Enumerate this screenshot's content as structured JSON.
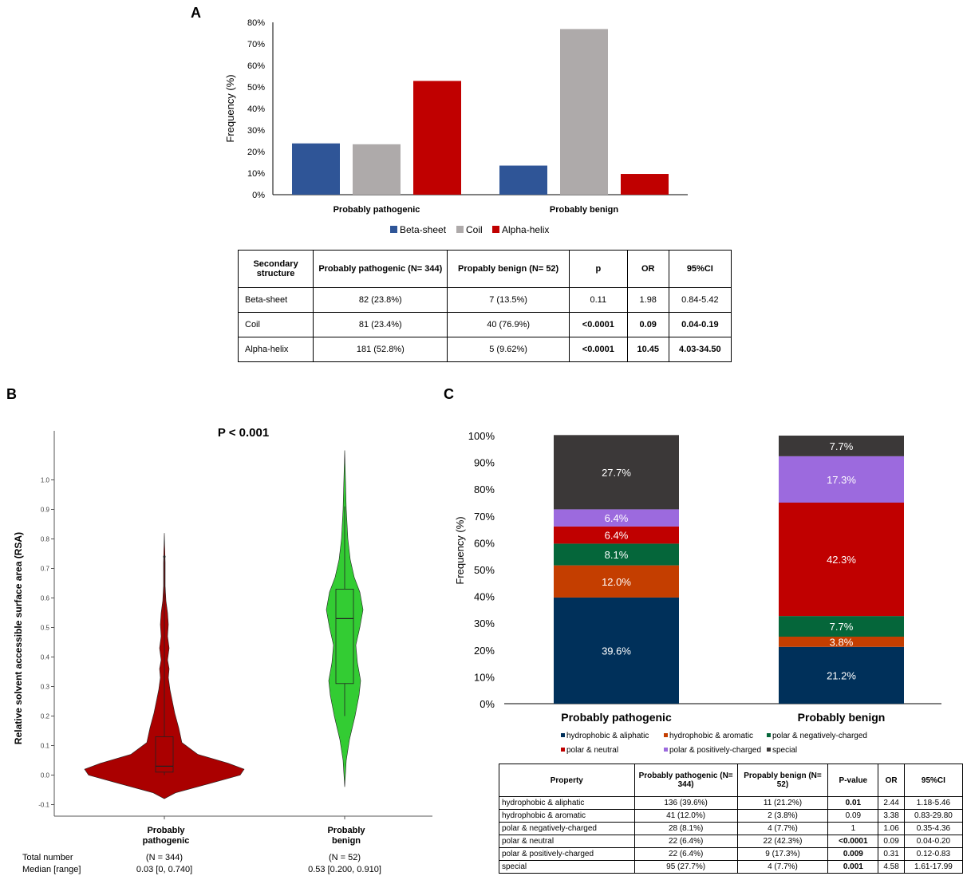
{
  "panels": [
    {
      "letter": "A"
    },
    {
      "letter": "B"
    },
    {
      "letter": "C"
    }
  ],
  "chart_data": [
    {
      "id": "A",
      "type": "bar",
      "ylabel": "Frequency (%)",
      "ylim": [
        0,
        80
      ],
      "yticks": [
        "0%",
        "10%",
        "20%",
        "30%",
        "40%",
        "50%",
        "60%",
        "70%",
        "80%"
      ],
      "categories": [
        "Probably pathogenic",
        "Probably benign"
      ],
      "series": [
        {
          "name": "Beta-sheet",
          "color": "#2f5597",
          "values": [
            23.8,
            13.5
          ]
        },
        {
          "name": "Coil",
          "color": "#aeaaaa",
          "values": [
            23.4,
            76.9
          ]
        },
        {
          "name": "Alpha-helix",
          "color": "#c00000",
          "values": [
            52.8,
            9.62
          ]
        }
      ],
      "legend": "bottom"
    },
    {
      "id": "B",
      "type": "violin",
      "annotation": "P < 0.001",
      "ylabel": "Relative solvent accessible surface area (RSA)",
      "ylim": [
        -0.1,
        1.0
      ],
      "yticks": [
        "-0.1",
        "0.0",
        "0.1",
        "0.2",
        "0.3",
        "0.4",
        "0.5",
        "0.6",
        "0.7",
        "0.8",
        "0.9",
        "1.0"
      ],
      "groups": [
        {
          "name": "Probably pathogenic",
          "color": "#aa0000",
          "median": 0.03,
          "q1": 0.01,
          "q3": 0.13,
          "whisker_low": 0.0,
          "whisker_high": 0.74,
          "outliers": [
            0.74
          ]
        },
        {
          "name": "Probably benign",
          "color": "#33cc33",
          "median": 0.53,
          "q1": 0.31,
          "q3": 0.63,
          "whisker_low": 0.2,
          "whisker_high": 0.91,
          "outliers": []
        }
      ],
      "stats": {
        "total_label": "Total number",
        "median_label": "Median [range]",
        "total": [
          "(N = 344)",
          "(N = 52)"
        ],
        "median": [
          "0.03 [0, 0.740]",
          "0.53 [0.200, 0.910]"
        ]
      }
    },
    {
      "id": "C",
      "type": "bar",
      "stacked": true,
      "ylabel": "Frequency (%)",
      "ylim": [
        0,
        100
      ],
      "yticks": [
        "0%",
        "10%",
        "20%",
        "30%",
        "40%",
        "50%",
        "60%",
        "70%",
        "80%",
        "90%",
        "100%"
      ],
      "categories": [
        "Probably pathogenic",
        "Probably benign"
      ],
      "series": [
        {
          "name": "hydrophobic & aliphatic",
          "color": "#00305a",
          "values": [
            39.6,
            21.2
          ],
          "labels": [
            "39.6%",
            "21.2%"
          ]
        },
        {
          "name": "hydrophobic & aromatic",
          "color": "#c43e00",
          "values": [
            12.0,
            3.8
          ],
          "labels": [
            "12.0%",
            "3.8%"
          ]
        },
        {
          "name": "polar & negatively-charged",
          "color": "#05663a",
          "values": [
            8.1,
            7.7
          ],
          "labels": [
            "8.1%",
            "7.7%"
          ]
        },
        {
          "name": "polar & neutral",
          "color": "#c00000",
          "values": [
            6.4,
            42.3
          ],
          "labels": [
            "6.4%",
            "42.3%"
          ]
        },
        {
          "name": "polar & positively-charged",
          "color": "#9c6ade",
          "values": [
            6.4,
            17.3
          ],
          "labels": [
            "6.4%",
            "17.3%"
          ]
        },
        {
          "name": "special",
          "color": "#3b3838",
          "values": [
            27.7,
            7.7
          ],
          "labels": [
            "27.7%",
            "7.7%"
          ]
        }
      ],
      "legend": "bottom"
    }
  ],
  "tableA": {
    "headers": [
      "Secondary structure",
      "Probably pathogenic (N= 344)",
      "Propably benign (N= 52)",
      "p",
      "OR",
      "95%CI"
    ],
    "rows": [
      {
        "cells": [
          "Beta-sheet",
          "82 (23.8%)",
          "7 (13.5%)",
          "0.11",
          "1.98",
          "0.84-5.42"
        ],
        "bold": [
          false,
          false,
          false,
          false,
          false,
          false
        ]
      },
      {
        "cells": [
          "Coil",
          "81 (23.4%)",
          "40 (76.9%)",
          "<0.0001",
          "0.09",
          "0.04-0.19"
        ],
        "bold": [
          false,
          false,
          false,
          true,
          true,
          true
        ]
      },
      {
        "cells": [
          "Alpha-helix",
          "181 (52.8%)",
          "5 (9.62%)",
          "<0.0001",
          "10.45",
          "4.03-34.50"
        ],
        "bold": [
          false,
          false,
          false,
          true,
          true,
          true
        ]
      }
    ]
  },
  "tableC": {
    "headers": [
      "Property",
      "Probably pathogenic (N= 344)",
      "Propably benign (N= 52)",
      "P-value",
      "OR",
      "95%CI"
    ],
    "rows": [
      {
        "cells": [
          "hydrophobic & aliphatic",
          "136 (39.6%)",
          "11 (21.2%)",
          "0.01",
          "2.44",
          "1.18-5.46"
        ],
        "bold": [
          false,
          false,
          false,
          true,
          false,
          false
        ]
      },
      {
        "cells": [
          "hydrophobic & aromatic",
          "41 (12.0%)",
          "2 (3.8%)",
          "0.09",
          "3.38",
          "0.83-29.80"
        ],
        "bold": [
          false,
          false,
          false,
          false,
          false,
          false
        ]
      },
      {
        "cells": [
          "polar & negatively-charged",
          "28 (8.1%)",
          "4 (7.7%)",
          "1",
          "1.06",
          "0.35-4.36"
        ],
        "bold": [
          false,
          false,
          false,
          false,
          false,
          false
        ]
      },
      {
        "cells": [
          "polar & neutral",
          "22 (6.4%)",
          "22 (42.3%)",
          "<0.0001",
          "0.09",
          "0.04-0.20"
        ],
        "bold": [
          false,
          false,
          false,
          true,
          false,
          false
        ]
      },
      {
        "cells": [
          "polar & positively-charged",
          "22 (6.4%)",
          "9 (17.3%)",
          "0.009",
          "0.31",
          "0.12-0.83"
        ],
        "bold": [
          false,
          false,
          false,
          true,
          false,
          false
        ]
      },
      {
        "cells": [
          "special",
          "95 (27.7%)",
          "4 (7.7%)",
          "0.001",
          "4.58",
          "1.61-17.99"
        ],
        "bold": [
          false,
          false,
          false,
          true,
          false,
          false
        ]
      }
    ]
  }
}
